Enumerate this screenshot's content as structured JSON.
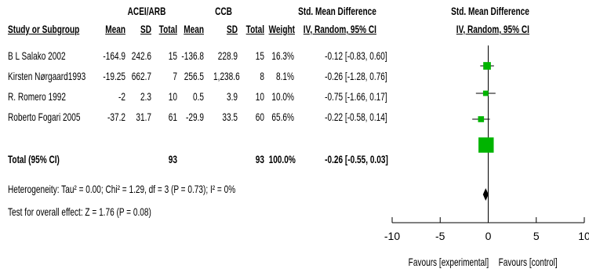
{
  "groups": {
    "experimental": "ACEI/ARB",
    "control": "CCB",
    "effect_header_table": "Std. Mean Difference",
    "effect_header_plot": "Std. Mean Difference"
  },
  "columns": {
    "study": "Study or Subgroup",
    "mean1": "Mean",
    "sd1": "SD",
    "total1": "Total",
    "mean2": "Mean",
    "sd2": "SD",
    "total2": "Total",
    "weight": "Weight",
    "ci": "IV, Random, 95% CI",
    "plot_ci": "IV, Random, 95% CI"
  },
  "rows": [
    {
      "study": "B L Salako 2002",
      "mean1": "-164.9",
      "sd1": "242.6",
      "total1": "15",
      "mean2": "-136.8",
      "sd2": "228.9",
      "total2": "15",
      "weight": "16.3%",
      "ci": "-0.12 [-0.83, 0.60]"
    },
    {
      "study": "Kirsten Nørgaard1993",
      "mean1": "-19.25",
      "sd1": "662.7",
      "total1": "7",
      "mean2": "256.5",
      "sd2": "1,238.6",
      "total2": "8",
      "weight": "8.1%",
      "ci": "-0.26 [-1.28, 0.76]"
    },
    {
      "study": "R. Romero 1992",
      "mean1": "-2",
      "sd1": "2.3",
      "total1": "10",
      "mean2": "0.5",
      "sd2": "3.9",
      "total2": "10",
      "weight": "10.0%",
      "ci": "-0.75 [-1.66, 0.17]"
    },
    {
      "study": "Roberto Fogari 2005",
      "mean1": "-37.2",
      "sd1": "31.7",
      "total1": "61",
      "mean2": "-29.9",
      "sd2": "33.5",
      "total2": "60",
      "weight": "65.6%",
      "ci": "-0.22 [-0.58, 0.14]"
    }
  ],
  "total": {
    "study": "Total (95% CI)",
    "total1": "93",
    "total2": "93",
    "weight": "100.0%",
    "ci": "-0.26 [-0.55, 0.03]"
  },
  "heterogeneity": "Heterogeneity: Tau² = 0.00; Chi² = 1.29, df = 3 (P = 0.73); I² = 0%",
  "overall_effect": "Test for overall effect: Z = 1.76 (P = 0.08)",
  "favours_left": "Favours [experimental]",
  "favours_right": "Favours [control]",
  "chart_data": {
    "type": "forest",
    "xlim": [
      -10,
      10
    ],
    "ticks": [
      -10,
      -5,
      0,
      5,
      10
    ],
    "tick_labels": [
      "-10",
      "-5",
      "0",
      "5",
      "10"
    ],
    "null_line": 0,
    "studies": [
      {
        "estimate": -0.12,
        "lower": -0.83,
        "upper": 0.6,
        "weight": 16.3
      },
      {
        "estimate": -0.26,
        "lower": -1.28,
        "upper": 0.76,
        "weight": 8.1
      },
      {
        "estimate": -0.75,
        "lower": -1.66,
        "upper": 0.17,
        "weight": 10.0
      },
      {
        "estimate": -0.22,
        "lower": -0.58,
        "upper": 0.14,
        "weight": 65.6
      }
    ],
    "pooled": {
      "estimate": -0.26,
      "lower": -0.55,
      "upper": 0.03
    },
    "colors": {
      "study_marker": "#00b400",
      "pooled_marker": "#000000",
      "lines": "#000000"
    }
  }
}
